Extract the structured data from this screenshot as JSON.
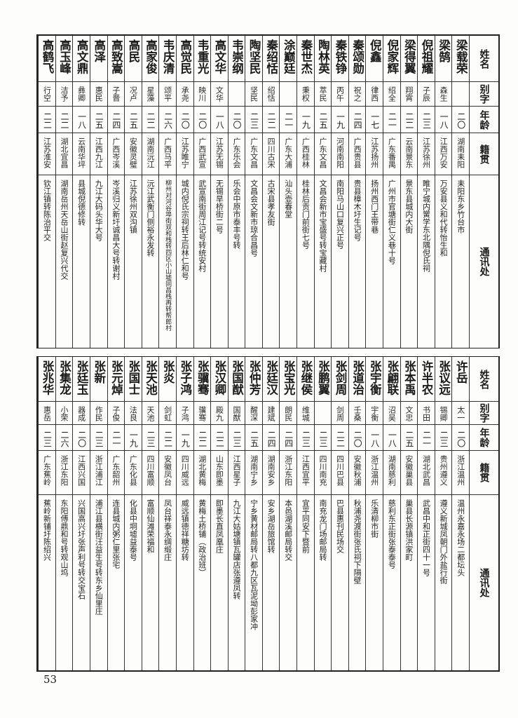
{
  "headers": {
    "name": "姓名",
    "alias": "别字",
    "age": "年龄",
    "origin": "籍贯",
    "address": "通讯处"
  },
  "tables": [
    {
      "rows": [
        {
          "name": "梁载荣",
          "alias": "",
          "age": "二〇",
          "origin": "湖南耒阳",
          "address": "耒阳东乡竹台市"
        },
        {
          "name": "梁鹄",
          "alias": "森生",
          "age": "一八",
          "origin": "江西万安",
          "address": "万安县义和代转怡生和"
        },
        {
          "name": "倪祖耀",
          "alias": "子辰",
          "age": "二三",
          "origin": "江苏徐州",
          "address": "睢宁城内黉学东北隅倪氏祠"
        },
        {
          "name": "梁得翼",
          "alias": "翔霄",
          "age": "二二",
          "origin": "云南景东",
          "address": "景东县城内大街"
        },
        {
          "name": "倪家辉",
          "alias": "绍全",
          "age": "二一",
          "origin": "广东番禺",
          "address": "广州市官塘街仁义巷十号"
        },
        {
          "name": "倪鑫",
          "alias": "律西",
          "age": "一七",
          "origin": "江苏扬州",
          "address": "扬州西门王带巷"
        },
        {
          "name": "秦颂勋",
          "alias": "祝之",
          "age": "二四",
          "origin": "广西贵县",
          "address": "贵县樟木圩生记号"
        },
        {
          "name": "秦铁铮",
          "alias": "丙午",
          "age": "一九",
          "origin": "河南南阳",
          "address": "南阳马山口复兴正号"
        },
        {
          "name": "陶林英",
          "alias": "萃民",
          "age": "二五",
          "origin": "广东文昌",
          "address": "文昌会新市宝盛号转宝藏村"
        },
        {
          "name": "秦世杰",
          "alias": "秉权",
          "age": "一九",
          "origin": "广西桂林",
          "address": "桂林后贡门前街七号"
        },
        {
          "name": "涂巅廷",
          "alias": "",
          "age": "二一",
          "origin": "广东大浦",
          "address": "汕头壶春堂"
        },
        {
          "name": "秦绍恬",
          "alias": "绍恬",
          "age": "二二",
          "origin": "四川古宋",
          "address": "古宋县孝友街"
        },
        {
          "name": "陶坚民",
          "alias": "坚民",
          "age": "二三",
          "origin": "广东文昌",
          "address": "文昌会文新市琼合昌号"
        },
        {
          "name": "韦崇纲",
          "alias": "",
          "age": "二〇",
          "origin": "广东乐会",
          "address": "乐会中原市泰丰号转"
        },
        {
          "name": "高文华",
          "alias": "文华",
          "age": "一八",
          "origin": "江苏无锡",
          "address": "无锡旱桥街二号"
        },
        {
          "name": "韦重光",
          "alias": "映川",
          "age": "二〇",
          "origin": "广西武宣",
          "address": "武宣南街周江记号转统安村"
        },
        {
          "name": "高觉民",
          "alias": "承尧",
          "age": "二〇",
          "origin": "江苏睢宁",
          "address": "城内倪氏宗祠转王后林仁和号"
        },
        {
          "name": "韦庆清",
          "alias": "颂平",
          "age": "二六",
          "origin": "广西马平",
          "address": "柳州对河谷埠街双和栈转四区小山墟同昌栈再转帮郎村"
        },
        {
          "name": "高家俊",
          "alias": "星藻",
          "age": "二二",
          "origin": "湖南沅江",
          "address": "沅江武衡门侧裕永发转"
        },
        {
          "name": "高民",
          "alias": "况卢",
          "age": "二五",
          "origin": "安徽灵璧",
          "address": "江苏徐州双沟镇"
        },
        {
          "name": "高致嵩",
          "alias": "子晋",
          "age": "二四",
          "origin": "广西岑溪",
          "address": "岑溪归义新圩诚昌大号转谢村"
        },
        {
          "name": "高泽",
          "alias": "惠民",
          "age": "二五",
          "origin": "江西九江",
          "address": "九江大码头华大号"
        },
        {
          "name": "高文鼎",
          "alias": "彝卿",
          "age": "一八",
          "origin": "云南华坪",
          "address": "县城倪德修转"
        },
        {
          "name": "高玉峰",
          "alias": "洁予",
          "age": "二二",
          "origin": "湖北宜昌",
          "address": "湖南岳州天岳山街赵复兴代交"
        },
        {
          "name": "高鹤飞",
          "alias": "行空",
          "age": "二二",
          "origin": "江苏淮安",
          "address": "钦江镇转陈治平交"
        }
      ]
    },
    {
      "rows": [
        {
          "name": "许岳",
          "alias": "太一",
          "age": "二〇",
          "origin": "浙江温州",
          "address": "温州永嘉永场二都坛头"
        },
        {
          "name": "张议远",
          "alias": "锡卿",
          "age": "二三",
          "origin": "贵州遵义",
          "address": "遵义新城凤朝门外盐行街"
        },
        {
          "name": "许半农",
          "alias": "书田",
          "age": "二一",
          "origin": "湖北武昌",
          "address": "武昌中和正街四十一号"
        },
        {
          "name": "张本禹",
          "alias": "文忠",
          "age": "二五",
          "origin": "安徽巢县",
          "address": "巢县长源镇洪家町"
        },
        {
          "name": "张翩联",
          "alias": "沼吴",
          "age": "一八",
          "origin": "湖南慈利",
          "address": "慈利东正街张泰泰号"
        },
        {
          "name": "张宇衡",
          "alias": "宇衡",
          "age": "一八",
          "origin": "浙江温州",
          "address": "乐清柳市街"
        },
        {
          "name": "张道治",
          "alias": "壬桑",
          "age": "二〇",
          "origin": "安徽秋浦",
          "address": "秋浦尧渡街张氏祠下隔壁"
        },
        {
          "name": "张剑周",
          "alias": "剑周",
          "age": "二二",
          "origin": "四川巴县",
          "address": "巴县惠刊民场交"
        },
        {
          "name": "张鹏翼",
          "alias": "",
          "age": "二三",
          "origin": "四川南充",
          "address": "南充龙门场邮局转"
        },
        {
          "name": "张继侯",
          "alias": "维城",
          "age": "二三",
          "origin": "江西宜平",
          "address": "宜平同安下暨前"
        },
        {
          "name": "张宝光",
          "alias": "朗民",
          "age": "二四",
          "origin": "浙江东阳",
          "address": "本邑湖溪邮局转交"
        },
        {
          "name": "张廷汉",
          "alias": "建斌",
          "age": "二四",
          "origin": "湖南安乡",
          "address": "安乡湖岳旅馆转"
        },
        {
          "name": "张仲芳",
          "alias": "醒深",
          "age": "二五",
          "origin": "湖南宁乡",
          "address": "宁乡黄材邮局转八都九区瓦泥坳彭家冲"
        },
        {
          "name": "张国猷",
          "alias": "国猷",
          "age": "二三",
          "origin": "江西星子",
          "address": "九江大姑塘镇瓦罐店张遵凤转"
        },
        {
          "name": "张汉卿",
          "alias": "殿九",
          "age": "二二",
          "origin": "山东即墨",
          "address": "即墨长直凤凰庄"
        },
        {
          "name": "张骥骞",
          "alias": "骥骞",
          "age": "二二",
          "origin": "湖北黄梅",
          "address": "黄梅土桥铺（政治班）"
        },
        {
          "name": "张子鸿",
          "alias": "子鸿",
          "age": "一九",
          "origin": "四川威远",
          "address": "威远镇德祥糖坊转"
        },
        {
          "name": "张炎",
          "alias": "剑虹",
          "age": "二二",
          "origin": "安徽凤台",
          "address": "凤台祥泰永绸缎庄"
        },
        {
          "name": "张天池",
          "alias": "天池",
          "age": "二三",
          "origin": "四川富顺",
          "address": "富顺仙滩荣福和"
        },
        {
          "name": "张国士",
          "alias": "法良",
          "age": "一九",
          "origin": "广东化县",
          "address": "化县中垌墟益泰号"
        },
        {
          "name": "张元焯",
          "alias": "子俊",
          "age": "二一",
          "origin": "广东韶州",
          "address": "连县城内粥仁里张宅"
        },
        {
          "name": "张新",
          "alias": "作民",
          "age": "二三",
          "origin": "浙江浦江",
          "address": "浦江县横街汪益生号转东乡仙里庄"
        },
        {
          "name": "张廷玉",
          "alias": "器成",
          "age": "二〇",
          "origin": "江西兴国",
          "address": "兴国高兴圩张声利号转交宝石"
        },
        {
          "name": "张集龙",
          "alias": "小荣",
          "age": "二六",
          "origin": "浙江东阳",
          "address": "东阳傅鼎和号转观山坞"
        },
        {
          "name": "张兆华",
          "alias": "惠岳",
          "age": "二三",
          "origin": "广东蕉岭",
          "address": "蕉岭新铺圩陈绍兴"
        }
      ]
    }
  ],
  "page_number": "53"
}
